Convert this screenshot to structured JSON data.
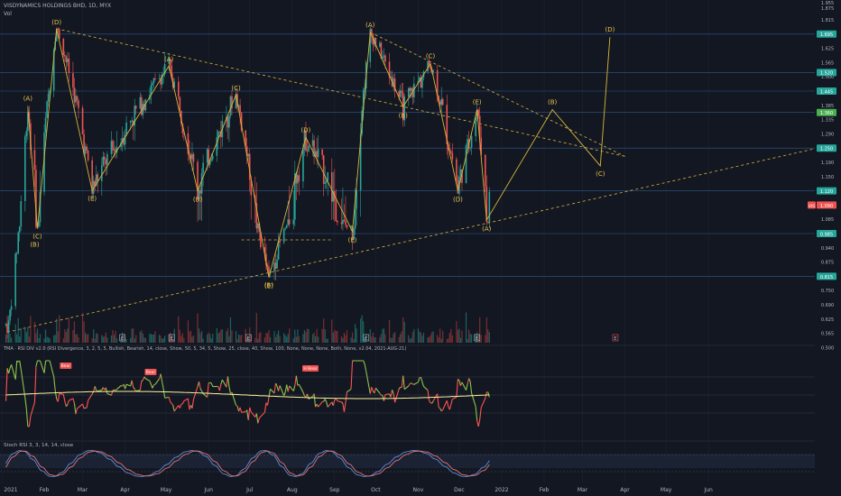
{
  "header": {
    "title": "VISDYNAMICS HOLDINGS BHD, 1D, MYX",
    "vol_label": "Vol"
  },
  "indicators": {
    "rsi_label": "TMA · RSI DIV v2.0 (RSI Divergence, 3, 2, 5, 5, Bullish, Bearish, 14, close, Show, 50, 5, 34, 5, Show, 25, close, 40, Show, 100, None, None, None, Both, None, v2.04, 2021-AUG-21)",
    "stoch_label": "Stoch RSI 3, 3, 14, 14, close"
  },
  "colors": {
    "background": "#131722",
    "up": "#26a69a",
    "down": "#ef5350",
    "wave": "#d8b53a",
    "label": "#e8c34a",
    "last_price": "#ef5350",
    "price_box": "#26a69a"
  },
  "chart_data": {
    "type": "candlestick",
    "symbol": "VISDYNAMICS HOLDINGS BHD",
    "interval": "1D",
    "exchange": "MYX",
    "x_ticks": [
      "2021",
      "Feb",
      "Mar",
      "Apr",
      "May",
      "Jun",
      "Jul",
      "Aug",
      "Sep",
      "Oct",
      "Nov",
      "Dec",
      "2022",
      "Feb",
      "Mar",
      "Apr",
      "May",
      "Jun"
    ],
    "y_ticks": [
      "1.815",
      "1.695",
      "1.625",
      "1.565",
      "1.500",
      "1.445",
      "1.385",
      "1.335",
      "1.290",
      "1.250",
      "1.190",
      "1.150",
      "1.120",
      "1.090",
      "1.085",
      "0.985",
      "0.940",
      "0.875",
      "0.815",
      "0.750",
      "0.690",
      "0.625",
      "0.565",
      "0.500"
    ],
    "price_boxes": [
      "1.695",
      "1.520",
      "1.445",
      "1.360",
      "1.250",
      "1.120",
      "0.985",
      "0.815"
    ],
    "last_price": {
      "symbol": "VIS",
      "value": "1.090"
    },
    "top_tick_labels": [
      "1.955",
      "1.875"
    ],
    "wave_labels": [
      "(A)",
      "(C)",
      "(B)",
      "(D)",
      "(E)",
      "(A)",
      "(B)",
      "(C)",
      "(B)",
      "(D)",
      "(E)",
      "(A)",
      "(B)",
      "(C)",
      "(D)",
      "(E)",
      "(A)",
      "(B)",
      "(C)",
      "(D)",
      "(E)"
    ],
    "swing_points": [
      {
        "date": "2021-01-06",
        "price": 0.6
      },
      {
        "date": "2021-01-20",
        "price": 1.38
      },
      {
        "date": "2021-01-27",
        "price": 1.02
      },
      {
        "date": "2021-02-10",
        "price": 1.74
      },
      {
        "date": "2021-03-08",
        "price": 1.12
      },
      {
        "date": "2021-05-03",
        "price": 1.55
      },
      {
        "date": "2021-05-24",
        "price": 1.12
      },
      {
        "date": "2021-06-21",
        "price": 1.43
      },
      {
        "date": "2021-07-15",
        "price": 0.81
      },
      {
        "date": "2021-08-11",
        "price": 1.28
      },
      {
        "date": "2021-09-14",
        "price": 1.0
      },
      {
        "date": "2021-09-27",
        "price": 1.71
      },
      {
        "date": "2021-10-21",
        "price": 1.38
      },
      {
        "date": "2021-11-10",
        "price": 1.56
      },
      {
        "date": "2021-11-30",
        "price": 1.12
      },
      {
        "date": "2021-12-14",
        "price": 1.37
      },
      {
        "date": "2021-12-21",
        "price": 1.08
      },
      {
        "date": "2022-02-07",
        "price": 1.37
      },
      {
        "date": "2022-03-14",
        "price": 1.18
      },
      {
        "date": "2022-03-21",
        "price": 1.68
      }
    ],
    "volume_markers": [
      "E",
      "E",
      "E",
      "E",
      "E",
      "E",
      "E",
      "E"
    ],
    "rsi": {
      "ticks": [
        "100.00",
        "80.00",
        "60.00",
        "40.00",
        "20.00"
      ],
      "signals": [
        "Bear",
        "Bear",
        "H Bear"
      ],
      "levels": {
        "upper": 70,
        "middle": 50,
        "lower": 30
      }
    },
    "stoch_rsi": {
      "ticks": [
        "80.00",
        "40.00",
        "0.00"
      ]
    }
  }
}
